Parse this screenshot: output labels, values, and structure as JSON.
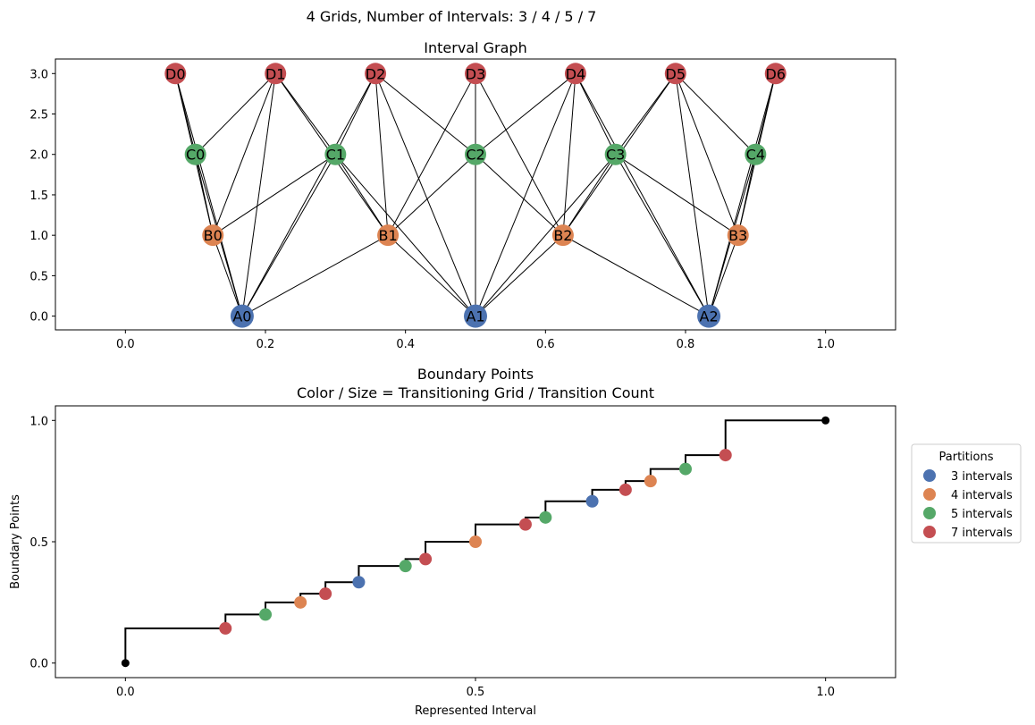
{
  "suptitle": "4 Grids, Number of Intervals: 3 / 4 / 5 / 7",
  "colors": {
    "A": "#4c72b0",
    "B": "#dd8452",
    "C": "#55a868",
    "D": "#c44e52",
    "endpoint": "#000000",
    "edge": "#000000",
    "step": "#000000"
  },
  "chart_data": [
    {
      "type": "network",
      "title": "Interval Graph",
      "xlim": [
        -0.1,
        1.1
      ],
      "ylim": [
        -0.17,
        3.18
      ],
      "xticks": [
        0.0,
        0.2,
        0.4,
        0.6,
        0.8,
        1.0
      ],
      "xtick_labels": [
        "0.0",
        "0.2",
        "0.4",
        "0.6",
        "0.8",
        "1.0"
      ],
      "yticks": [
        0.0,
        0.5,
        1.0,
        1.5,
        2.0,
        2.5,
        3.0
      ],
      "ytick_labels": [
        "0.0",
        "0.5",
        "1.0",
        "1.5",
        "2.0",
        "2.5",
        "3.0"
      ],
      "nodes": [
        {
          "label": "A0",
          "grid": "A",
          "x": 0.1667,
          "y": 0
        },
        {
          "label": "A1",
          "grid": "A",
          "x": 0.5,
          "y": 0
        },
        {
          "label": "A2",
          "grid": "A",
          "x": 0.8333,
          "y": 0
        },
        {
          "label": "B0",
          "grid": "B",
          "x": 0.125,
          "y": 1
        },
        {
          "label": "B1",
          "grid": "B",
          "x": 0.375,
          "y": 1
        },
        {
          "label": "B2",
          "grid": "B",
          "x": 0.625,
          "y": 1
        },
        {
          "label": "B3",
          "grid": "B",
          "x": 0.875,
          "y": 1
        },
        {
          "label": "C0",
          "grid": "C",
          "x": 0.1,
          "y": 2
        },
        {
          "label": "C1",
          "grid": "C",
          "x": 0.3,
          "y": 2
        },
        {
          "label": "C2",
          "grid": "C",
          "x": 0.5,
          "y": 2
        },
        {
          "label": "C3",
          "grid": "C",
          "x": 0.7,
          "y": 2
        },
        {
          "label": "C4",
          "grid": "C",
          "x": 0.9,
          "y": 2
        },
        {
          "label": "D0",
          "grid": "D",
          "x": 0.0714,
          "y": 3
        },
        {
          "label": "D1",
          "grid": "D",
          "x": 0.2143,
          "y": 3
        },
        {
          "label": "D2",
          "grid": "D",
          "x": 0.3571,
          "y": 3
        },
        {
          "label": "D3",
          "grid": "D",
          "x": 0.5,
          "y": 3
        },
        {
          "label": "D4",
          "grid": "D",
          "x": 0.6429,
          "y": 3
        },
        {
          "label": "D5",
          "grid": "D",
          "x": 0.7857,
          "y": 3
        },
        {
          "label": "D6",
          "grid": "D",
          "x": 0.9286,
          "y": 3
        }
      ],
      "edges": [
        [
          "A0",
          "B0"
        ],
        [
          "A0",
          "B1"
        ],
        [
          "A0",
          "C0"
        ],
        [
          "A0",
          "C1"
        ],
        [
          "A0",
          "D0"
        ],
        [
          "A0",
          "D1"
        ],
        [
          "A0",
          "D2"
        ],
        [
          "A1",
          "B1"
        ],
        [
          "A1",
          "B2"
        ],
        [
          "A1",
          "C1"
        ],
        [
          "A1",
          "C2"
        ],
        [
          "A1",
          "C3"
        ],
        [
          "A1",
          "D2"
        ],
        [
          "A1",
          "D3"
        ],
        [
          "A1",
          "D4"
        ],
        [
          "A2",
          "B2"
        ],
        [
          "A2",
          "B3"
        ],
        [
          "A2",
          "C3"
        ],
        [
          "A2",
          "C4"
        ],
        [
          "A2",
          "D4"
        ],
        [
          "A2",
          "D5"
        ],
        [
          "A2",
          "D6"
        ],
        [
          "B0",
          "C0"
        ],
        [
          "B0",
          "C1"
        ],
        [
          "B0",
          "D0"
        ],
        [
          "B0",
          "D1"
        ],
        [
          "B1",
          "C1"
        ],
        [
          "B1",
          "C2"
        ],
        [
          "B1",
          "D1"
        ],
        [
          "B1",
          "D2"
        ],
        [
          "B1",
          "D3"
        ],
        [
          "B2",
          "C2"
        ],
        [
          "B2",
          "C3"
        ],
        [
          "B2",
          "D3"
        ],
        [
          "B2",
          "D4"
        ],
        [
          "B2",
          "D5"
        ],
        [
          "B3",
          "C3"
        ],
        [
          "B3",
          "C4"
        ],
        [
          "B3",
          "D5"
        ],
        [
          "B3",
          "D6"
        ],
        [
          "C0",
          "D0"
        ],
        [
          "C0",
          "D1"
        ],
        [
          "C1",
          "D1"
        ],
        [
          "C1",
          "D2"
        ],
        [
          "C2",
          "D2"
        ],
        [
          "C2",
          "D3"
        ],
        [
          "C2",
          "D4"
        ],
        [
          "C3",
          "D4"
        ],
        [
          "C3",
          "D5"
        ],
        [
          "C4",
          "D5"
        ],
        [
          "C4",
          "D6"
        ]
      ]
    },
    {
      "type": "scatter",
      "title": "Boundary Points",
      "subtitle": "Color / Size = Transitioning Grid / Transition Count",
      "xlabel": "Represented Interval",
      "ylabel": "Boundary Points",
      "xlim": [
        -0.1,
        1.1
      ],
      "ylim": [
        -0.06,
        1.06
      ],
      "xticks": [
        0.0,
        0.5,
        1.0
      ],
      "xtick_labels": [
        "0.0",
        "0.5",
        "1.0"
      ],
      "yticks": [
        0.0,
        0.5,
        1.0
      ],
      "ytick_labels": [
        "0.0",
        "0.5",
        "1.0"
      ],
      "legend": {
        "title": "Partitions",
        "placement": "outside-right",
        "entries": [
          {
            "label": "3 intervals",
            "grid": "A"
          },
          {
            "label": "4 intervals",
            "grid": "B"
          },
          {
            "label": "5 intervals",
            "grid": "C"
          },
          {
            "label": "7 intervals",
            "grid": "D"
          }
        ]
      },
      "endpoints": [
        {
          "x": 0.0,
          "y": 0.0
        },
        {
          "x": 1.0,
          "y": 1.0
        }
      ],
      "points": [
        {
          "x": 0.1429,
          "y": 0.1429,
          "grid": "D"
        },
        {
          "x": 0.2,
          "y": 0.2,
          "grid": "C"
        },
        {
          "x": 0.25,
          "y": 0.25,
          "grid": "B"
        },
        {
          "x": 0.2857,
          "y": 0.2857,
          "grid": "D"
        },
        {
          "x": 0.3333,
          "y": 0.3333,
          "grid": "A"
        },
        {
          "x": 0.4,
          "y": 0.4,
          "grid": "C"
        },
        {
          "x": 0.4286,
          "y": 0.4286,
          "grid": "D"
        },
        {
          "x": 0.5,
          "y": 0.5,
          "grid": "B"
        },
        {
          "x": 0.5714,
          "y": 0.5714,
          "grid": "D"
        },
        {
          "x": 0.6,
          "y": 0.6,
          "grid": "C"
        },
        {
          "x": 0.6667,
          "y": 0.6667,
          "grid": "A"
        },
        {
          "x": 0.7143,
          "y": 0.7143,
          "grid": "D"
        },
        {
          "x": 0.75,
          "y": 0.75,
          "grid": "B"
        },
        {
          "x": 0.8,
          "y": 0.8,
          "grid": "C"
        },
        {
          "x": 0.8571,
          "y": 0.8571,
          "grid": "D"
        }
      ]
    }
  ]
}
